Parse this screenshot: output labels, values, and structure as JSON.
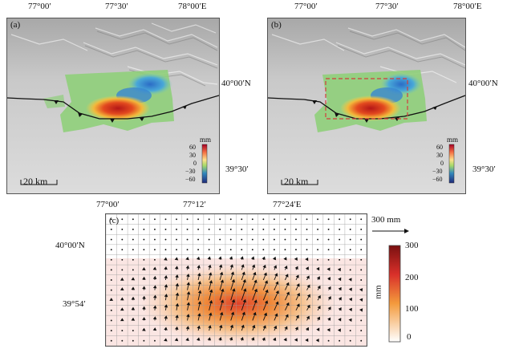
{
  "panel_a": {
    "label": "(a)",
    "top_labels": [
      "77°00′",
      "77°30′",
      "78°00′E"
    ],
    "right_labels": [
      "40°00′N",
      "39°30′"
    ],
    "scale_bar": "20 km",
    "colorbar": {
      "unit": "mm",
      "ticks": [
        "60",
        "30",
        "0",
        "−30",
        "−60"
      ]
    }
  },
  "panel_b": {
    "label": "(b)",
    "top_labels": [
      "77°00′",
      "77°30′",
      "78°00′E"
    ],
    "right_labels": [
      "40°00′N",
      "39°30′"
    ],
    "scale_bar": "20 km",
    "colorbar": {
      "unit": "mm",
      "ticks": [
        "60",
        "30",
        "0",
        "−30",
        "−60"
      ]
    }
  },
  "panel_c": {
    "label": "(c)",
    "top_labels": [
      "77°00′",
      "77°12′",
      "77°24′E"
    ],
    "left_labels": [
      "40°00′N",
      "39°54′"
    ],
    "reference_arrow": "300 mm",
    "colorbar": {
      "unit": "mm",
      "ticks": [
        "300",
        "200",
        "100",
        "0"
      ]
    }
  },
  "colors": {
    "deformation_red": "#c8201e",
    "deformation_blue": "#2f79c8",
    "green_field": "#8fcf7a",
    "dashed_box": "#d23c3c",
    "slip_max": "#8b1a1a"
  }
}
